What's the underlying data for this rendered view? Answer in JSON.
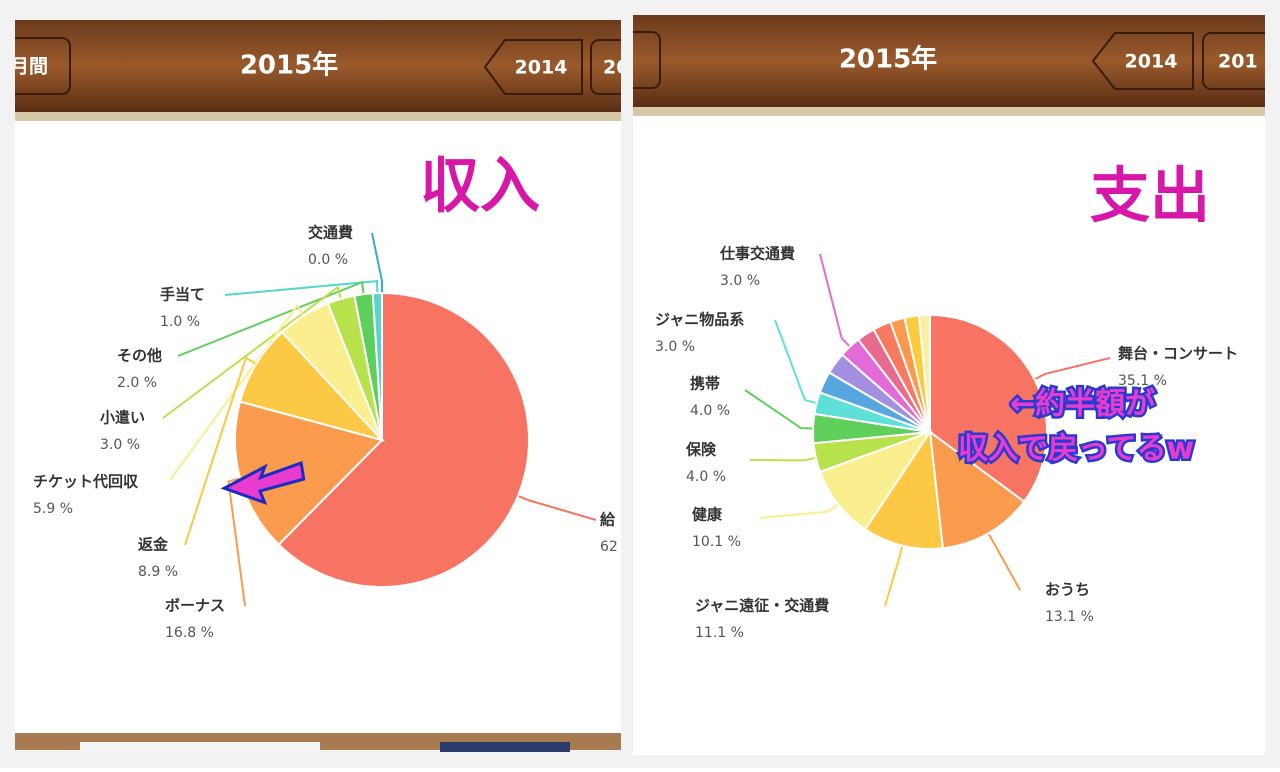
{
  "panels": [
    {
      "header": {
        "tab": "月間",
        "year": "2015年",
        "prev": "2014",
        "next": "20"
      },
      "overlay": "収入"
    },
    {
      "header": {
        "year": "2015年",
        "prev": "2014",
        "next": "201"
      },
      "overlay": "支出",
      "note": [
        "←約半額が",
        "収入で戻ってるw"
      ]
    }
  ],
  "chart_data": [
    {
      "type": "pie",
      "categories": [
        "給",
        "ボーナス",
        "返金",
        "チケット代回収",
        "小遣い",
        "その他",
        "手当て",
        "交通費"
      ],
      "values": [
        62.4,
        16.8,
        8.9,
        5.9,
        3.0,
        2.0,
        1.0,
        0.0
      ],
      "value_labels": [
        "62",
        "16.8 %",
        "8.9 %",
        "5.9 %",
        "3.0 %",
        "2.0 %",
        "1.0 %",
        "0.0 %"
      ],
      "colors": [
        "#f87462",
        "#fb9b4e",
        "#fdc843",
        "#fbee8f",
        "#b7e24b",
        "#5fcf5c",
        "#55d6cd",
        "#3aa8d8"
      ]
    },
    {
      "type": "pie",
      "categories": [
        "舞台・コンサート",
        "おうち",
        "ジャニ遠征・交通費",
        "健康",
        "保険",
        "携帯",
        "ジャニ物品系",
        null,
        null,
        "仕事交通費",
        null,
        null,
        null,
        null,
        null
      ],
      "values": [
        35.1,
        13.1,
        11.1,
        10.1,
        4.0,
        4.0,
        3.0,
        3.0,
        3.0,
        3.0,
        2.5,
        2.5,
        2.0,
        2.0,
        1.5
      ],
      "value_labels": [
        "35.1 %",
        "13.1 %",
        "11.1 %",
        "10.1 %",
        "4.0 %",
        "4.0 %",
        "3.0 %",
        null,
        null,
        "3.0 %",
        null,
        null,
        null,
        null,
        null
      ],
      "colors": [
        "#f87462",
        "#fb9b4e",
        "#fdc843",
        "#fbee8f",
        "#b7e24b",
        "#5fcf5c",
        "#5ee0d8",
        "#58a6e0",
        "#a28fe0",
        "#e36bd8",
        "#e86a8d",
        "#f8795f",
        "#fb9a4c",
        "#fdcb3c",
        "#fbeea0"
      ]
    }
  ]
}
